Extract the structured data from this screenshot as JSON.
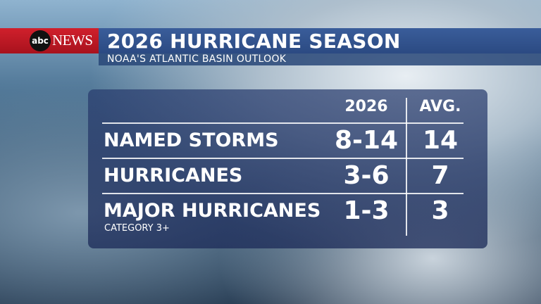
{
  "header": {
    "logo": "abc",
    "network": "NEWS",
    "title": "2026 HURRICANE SEASON",
    "subtitle": "NOAA'S ATLANTIC BASIN OUTLOOK"
  },
  "table": {
    "columns": [
      "2026",
      "AVG."
    ],
    "rows": [
      {
        "label": "NAMED STORMS",
        "values": [
          "8-14",
          14
        ]
      },
      {
        "label": "HURRICANES",
        "values": [
          "3-6",
          7
        ]
      },
      {
        "label": "MAJOR HURRICANES",
        "note": "CATEGORY 3+",
        "values": [
          "1-3",
          3
        ]
      }
    ]
  }
}
